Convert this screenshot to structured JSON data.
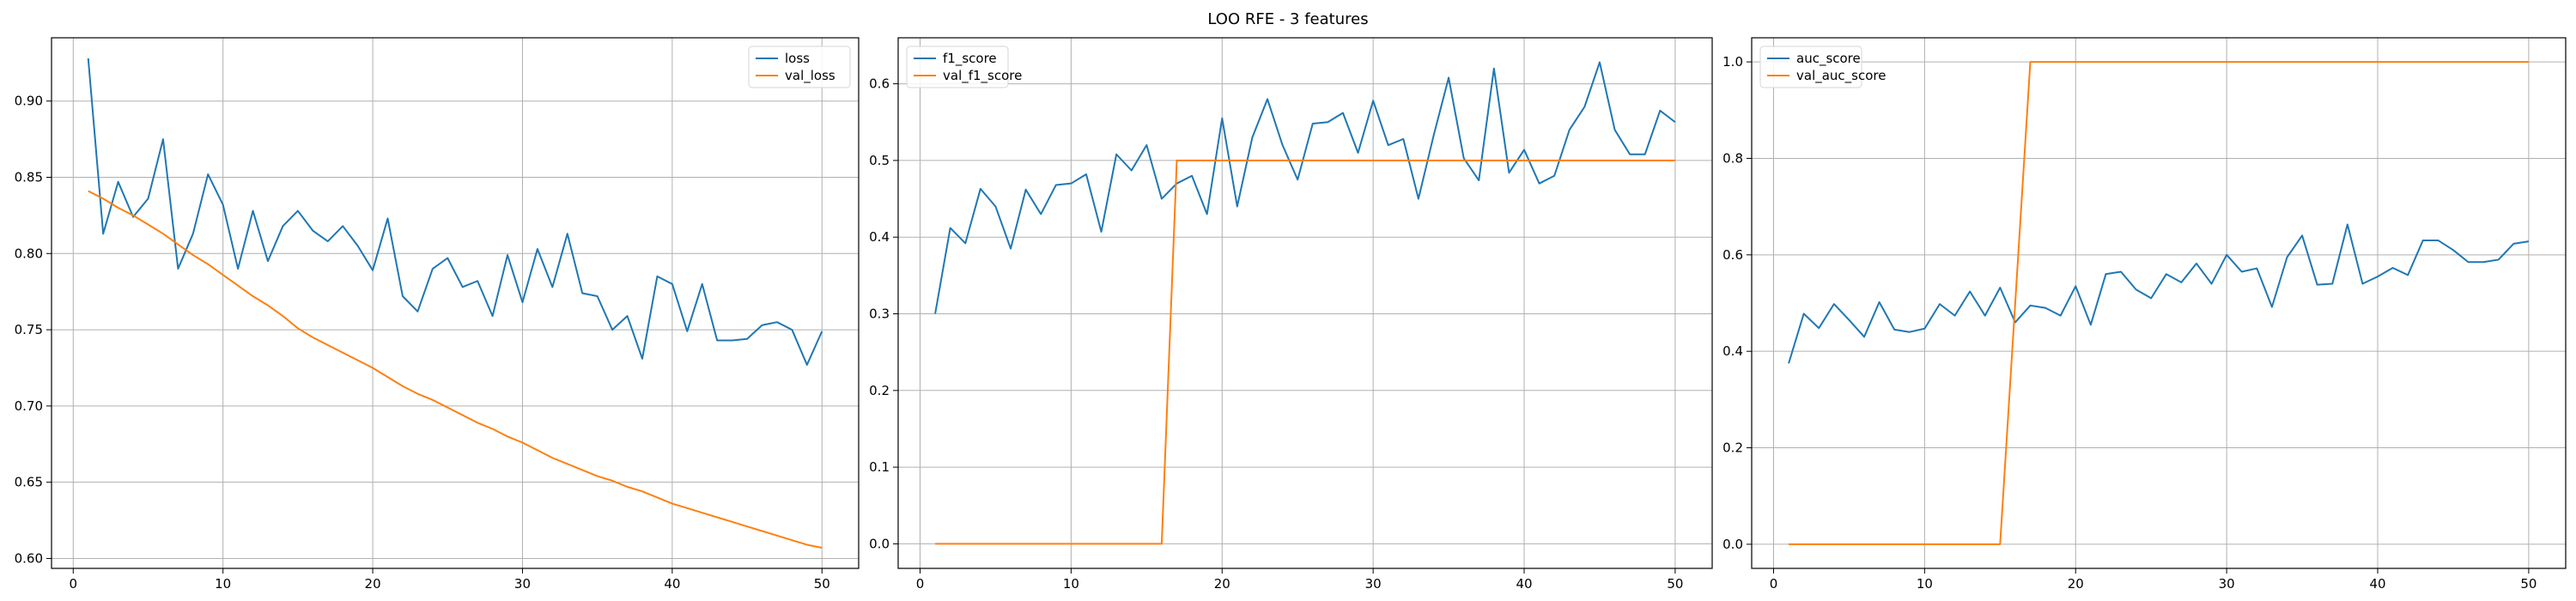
{
  "figure": {
    "suptitle": "LOO RFE - 3 features"
  },
  "colors": {
    "train": "#1f77b4",
    "val": "#ff7f0e",
    "grid": "#b0b0b0",
    "axes": "#000000"
  },
  "chart_data": [
    {
      "type": "line",
      "x_start": 1,
      "xlim": [
        -1.45,
        52.45
      ],
      "ylim": [
        0.5935,
        0.9415
      ],
      "xticks": [
        0,
        10,
        20,
        30,
        40,
        50
      ],
      "yticks": [
        0.6,
        0.65,
        0.7,
        0.75,
        0.8,
        0.85,
        0.9
      ],
      "ytick_labels": [
        "0.60",
        "0.65",
        "0.70",
        "0.75",
        "0.80",
        "0.85",
        "0.90"
      ],
      "grid": true,
      "legend_position": "upper right",
      "series": [
        {
          "name": "loss",
          "color": "#1f77b4",
          "values": [
            0.928,
            0.813,
            0.847,
            0.824,
            0.836,
            0.875,
            0.79,
            0.813,
            0.852,
            0.832,
            0.79,
            0.828,
            0.795,
            0.818,
            0.828,
            0.815,
            0.808,
            0.818,
            0.805,
            0.789,
            0.823,
            0.772,
            0.762,
            0.79,
            0.797,
            0.778,
            0.782,
            0.759,
            0.799,
            0.768,
            0.803,
            0.778,
            0.813,
            0.774,
            0.772,
            0.75,
            0.759,
            0.731,
            0.785,
            0.78,
            0.749,
            0.78,
            0.743,
            0.743,
            0.744,
            0.753,
            0.755,
            0.75,
            0.727,
            0.749
          ]
        },
        {
          "name": "val_loss",
          "color": "#ff7f0e",
          "values": [
            0.841,
            0.836,
            0.83,
            0.825,
            0.819,
            0.813,
            0.806,
            0.799,
            0.793,
            0.786,
            0.779,
            0.772,
            0.766,
            0.759,
            0.751,
            0.745,
            0.74,
            0.735,
            0.73,
            0.725,
            0.719,
            0.713,
            0.708,
            0.704,
            0.699,
            0.694,
            0.689,
            0.685,
            0.68,
            0.676,
            0.671,
            0.666,
            0.662,
            0.658,
            0.654,
            0.651,
            0.647,
            0.644,
            0.64,
            0.636,
            0.633,
            0.63,
            0.627,
            0.624,
            0.621,
            0.618,
            0.615,
            0.612,
            0.609,
            0.607
          ]
        }
      ]
    },
    {
      "type": "line",
      "x_start": 1,
      "xlim": [
        -1.45,
        52.45
      ],
      "ylim": [
        -0.032,
        0.66
      ],
      "xticks": [
        0,
        10,
        20,
        30,
        40,
        50
      ],
      "yticks": [
        0.0,
        0.1,
        0.2,
        0.3,
        0.4,
        0.5,
        0.6
      ],
      "ytick_labels": [
        "0.0",
        "0.1",
        "0.2",
        "0.3",
        "0.4",
        "0.5",
        "0.6"
      ],
      "grid": true,
      "legend_position": "upper left",
      "series": [
        {
          "name": "f1_score",
          "color": "#1f77b4",
          "values": [
            0.3,
            0.412,
            0.392,
            0.463,
            0.44,
            0.385,
            0.462,
            0.43,
            0.468,
            0.47,
            0.482,
            0.407,
            0.508,
            0.487,
            0.52,
            0.45,
            0.47,
            0.48,
            0.43,
            0.555,
            0.44,
            0.53,
            0.58,
            0.52,
            0.475,
            0.548,
            0.55,
            0.562,
            0.51,
            0.578,
            0.52,
            0.528,
            0.45,
            0.532,
            0.608,
            0.503,
            0.474,
            0.62,
            0.484,
            0.514,
            0.47,
            0.48,
            0.54,
            0.57,
            0.628,
            0.54,
            0.508,
            0.508,
            0.565,
            0.55
          ]
        },
        {
          "name": "val_f1_score",
          "color": "#ff7f0e",
          "values": [
            0,
            0,
            0,
            0,
            0,
            0,
            0,
            0,
            0,
            0,
            0,
            0,
            0,
            0,
            0,
            0,
            0.5,
            0.5,
            0.5,
            0.5,
            0.5,
            0.5,
            0.5,
            0.5,
            0.5,
            0.5,
            0.5,
            0.5,
            0.5,
            0.5,
            0.5,
            0.5,
            0.5,
            0.5,
            0.5,
            0.5,
            0.5,
            0.5,
            0.5,
            0.5,
            0.5,
            0.5,
            0.5,
            0.5,
            0.5,
            0.5,
            0.5,
            0.5,
            0.5,
            0.5
          ]
        }
      ]
    },
    {
      "type": "line",
      "x_start": 1,
      "xlim": [
        -1.45,
        52.45
      ],
      "ylim": [
        -0.05,
        1.05
      ],
      "xticks": [
        0,
        10,
        20,
        30,
        40,
        50
      ],
      "yticks": [
        0.0,
        0.2,
        0.4,
        0.6,
        0.8,
        1.0
      ],
      "ytick_labels": [
        "0.0",
        "0.2",
        "0.4",
        "0.6",
        "0.8",
        "1.0"
      ],
      "grid": true,
      "legend_position": "upper left",
      "series": [
        {
          "name": "auc_score",
          "color": "#1f77b4",
          "values": [
            0.375,
            0.478,
            0.448,
            0.498,
            0.465,
            0.43,
            0.502,
            0.445,
            0.44,
            0.447,
            0.498,
            0.474,
            0.524,
            0.474,
            0.532,
            0.46,
            0.495,
            0.49,
            0.474,
            0.535,
            0.455,
            0.56,
            0.565,
            0.528,
            0.51,
            0.56,
            0.543,
            0.582,
            0.54,
            0.6,
            0.565,
            0.572,
            0.492,
            0.595,
            0.64,
            0.538,
            0.54,
            0.663,
            0.54,
            0.555,
            0.573,
            0.558,
            0.63,
            0.63,
            0.61,
            0.585,
            0.585,
            0.59,
            0.623,
            0.628
          ]
        },
        {
          "name": "val_auc_score",
          "color": "#ff7f0e",
          "values": [
            0,
            0,
            0,
            0,
            0,
            0,
            0,
            0,
            0,
            0,
            0,
            0,
            0,
            0,
            0,
            0.5,
            1,
            1,
            1,
            1,
            1,
            1,
            1,
            1,
            1,
            1,
            1,
            1,
            1,
            1,
            1,
            1,
            1,
            1,
            1,
            1,
            1,
            1,
            1,
            1,
            1,
            1,
            1,
            1,
            1,
            1,
            1,
            1,
            1,
            1
          ]
        }
      ]
    }
  ]
}
